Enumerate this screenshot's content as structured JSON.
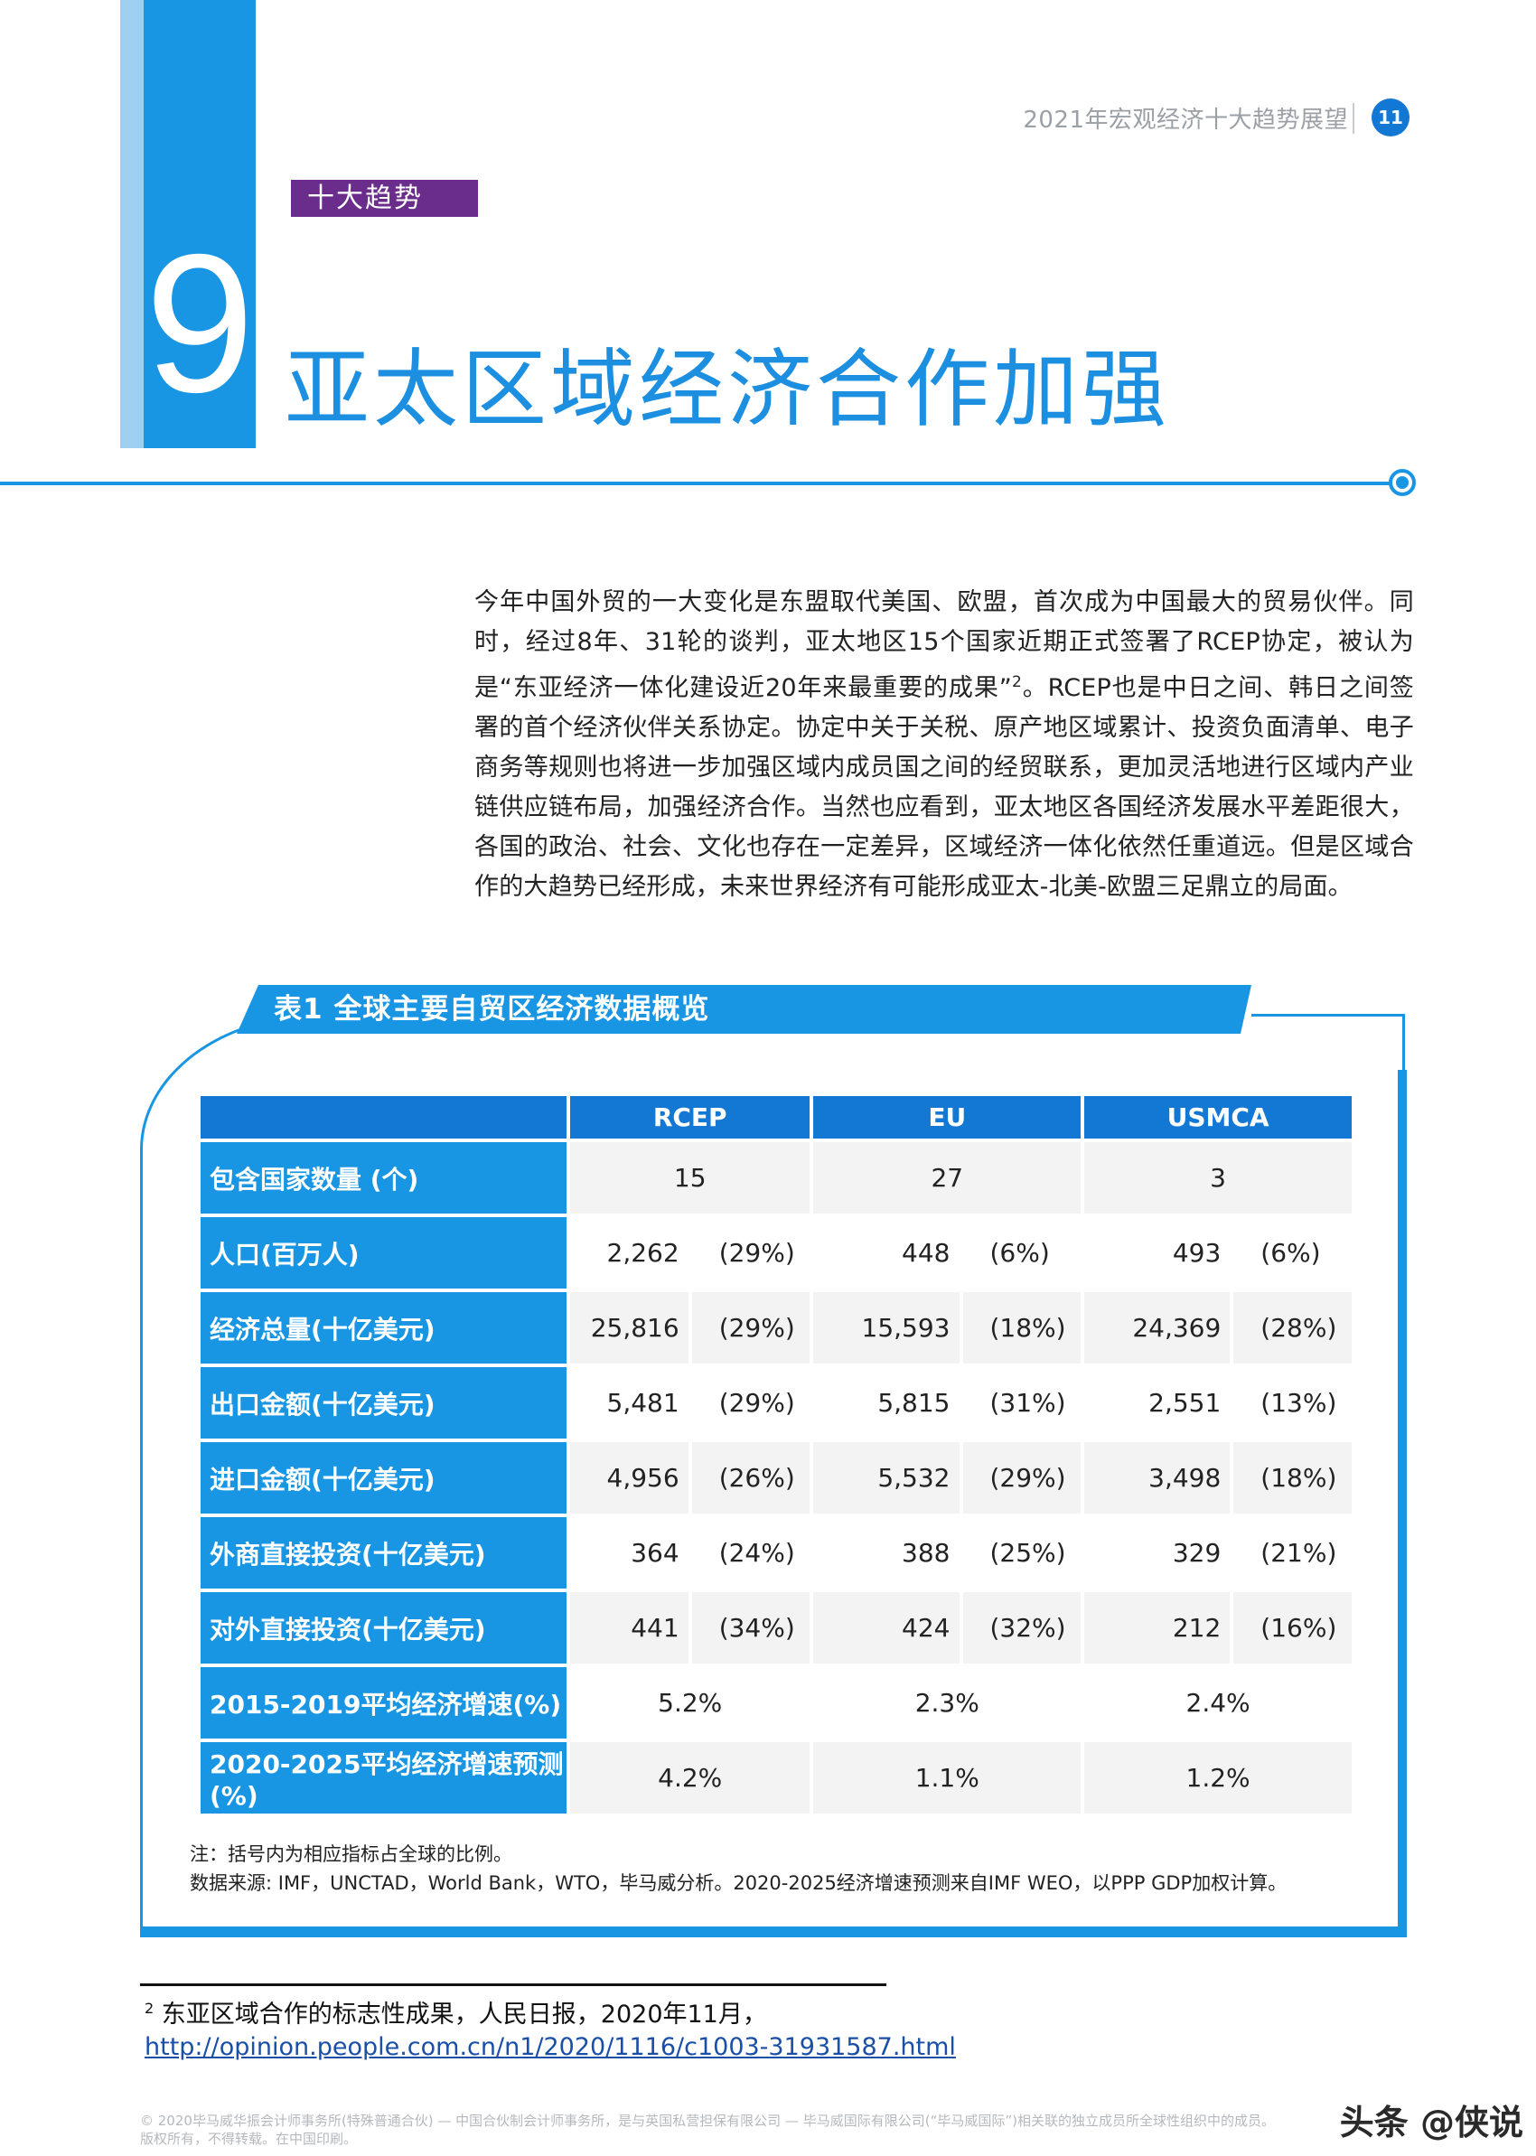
{
  "header": {
    "running_title": "2021年宏观经济十大趋势展望",
    "page_number": "11"
  },
  "chapter": {
    "tag": "十大趋势",
    "number": "9",
    "title": "亚太区域经济合作加强"
  },
  "body": {
    "paragraph_before_sup": "今年中国外贸的一大变化是东盟取代美国、欧盟，首次成为中国最大的贸易伙伴。同时，经过8年、31轮的谈判，亚太地区15个国家近期正式签署了RCEP协定，被认为是“东亚经济一体化建设近20年来最重要的成果”",
    "footnote_ref": "2",
    "paragraph_after_sup": "。RCEP也是中日之间、韩日之间签署的首个经济伙伴关系协定。协定中关于关税、原产地区域累计、投资负面清单、电子商务等规则也将进一步加强区域内成员国之间的经贸联系，更加灵活地进行区域内产业链供应链布局，加强经济合作。当然也应看到，亚太地区各国经济发展水平差距很大，各国的政治、社会、文化也存在一定差异，区域经济一体化依然任重道远。但是区域合作的大趋势已经形成，未来世界经济有可能形成亚太-北美-欧盟三足鼎立的局面。"
  },
  "table": {
    "title": "表1  全球主要自贸区经济数据概览",
    "columns": [
      "RCEP",
      "EU",
      "USMCA"
    ],
    "rows": [
      {
        "label": "包含国家数量 (个)",
        "cells": [
          "15",
          "27",
          "3"
        ]
      },
      {
        "label": "人口(百万人)",
        "cells": [
          [
            "2,262",
            "(29%)"
          ],
          [
            "448",
            "(6%)"
          ],
          [
            "493",
            "(6%)"
          ]
        ]
      },
      {
        "label": "经济总量(十亿美元)",
        "cells": [
          [
            "25,816",
            "(29%)"
          ],
          [
            "15,593",
            "(18%)"
          ],
          [
            "24,369",
            "(28%)"
          ]
        ]
      },
      {
        "label": "出口金额(十亿美元)",
        "cells": [
          [
            "5,481",
            "(29%)"
          ],
          [
            "5,815",
            "(31%)"
          ],
          [
            "2,551",
            "(13%)"
          ]
        ]
      },
      {
        "label": "进口金额(十亿美元)",
        "cells": [
          [
            "4,956",
            "(26%)"
          ],
          [
            "5,532",
            "(29%)"
          ],
          [
            "3,498",
            "(18%)"
          ]
        ]
      },
      {
        "label": "外商直接投资(十亿美元)",
        "cells": [
          [
            "364",
            "(24%)"
          ],
          [
            "388",
            "(25%)"
          ],
          [
            "329",
            "(21%)"
          ]
        ]
      },
      {
        "label": "对外直接投资(十亿美元)",
        "cells": [
          [
            "441",
            "(34%)"
          ],
          [
            "424",
            "(32%)"
          ],
          [
            "212",
            "(16%)"
          ]
        ]
      },
      {
        "label": "2015-2019平均经济增速(%)",
        "cells": [
          "5.2%",
          "2.3%",
          "2.4%"
        ]
      },
      {
        "label": "2020-2025平均经济增速预测(%)",
        "cells": [
          "4.2%",
          "1.1%",
          "1.2%"
        ]
      }
    ],
    "note_1": "注：括号内为相应指标占全球的比例。",
    "note_2": "数据来源: IMF，UNCTAD，World Bank，WTO，毕马威分析。2020-2025经济增速预测来自IMF WEO，以PPP GDP加权计算。"
  },
  "footnote": {
    "number": "2",
    "text": "东亚区域合作的标志性成果，人民日报，2020年11月，",
    "link": "http://opinion.people.com.cn/n1/2020/1116/c1003-31931587.html"
  },
  "legal": {
    "line_1": "© 2020毕马威华振会计师事务所(特殊普通合伙) — 中国合伙制会计师事务所，是与英国私营担保有限公司 — 毕马威国际有限公司(“毕马威国际”)相关联的独立成员所全球性组织中的成员。",
    "line_2": "版权所有，不得转载。在中国印刷。"
  },
  "watermark": "头条 @侠说",
  "colors": {
    "brand_blue": "#1996e3",
    "header_blue": "#1378d4",
    "tag_purple": "#6b2d8b",
    "light_bar": "#9fd0f0"
  }
}
